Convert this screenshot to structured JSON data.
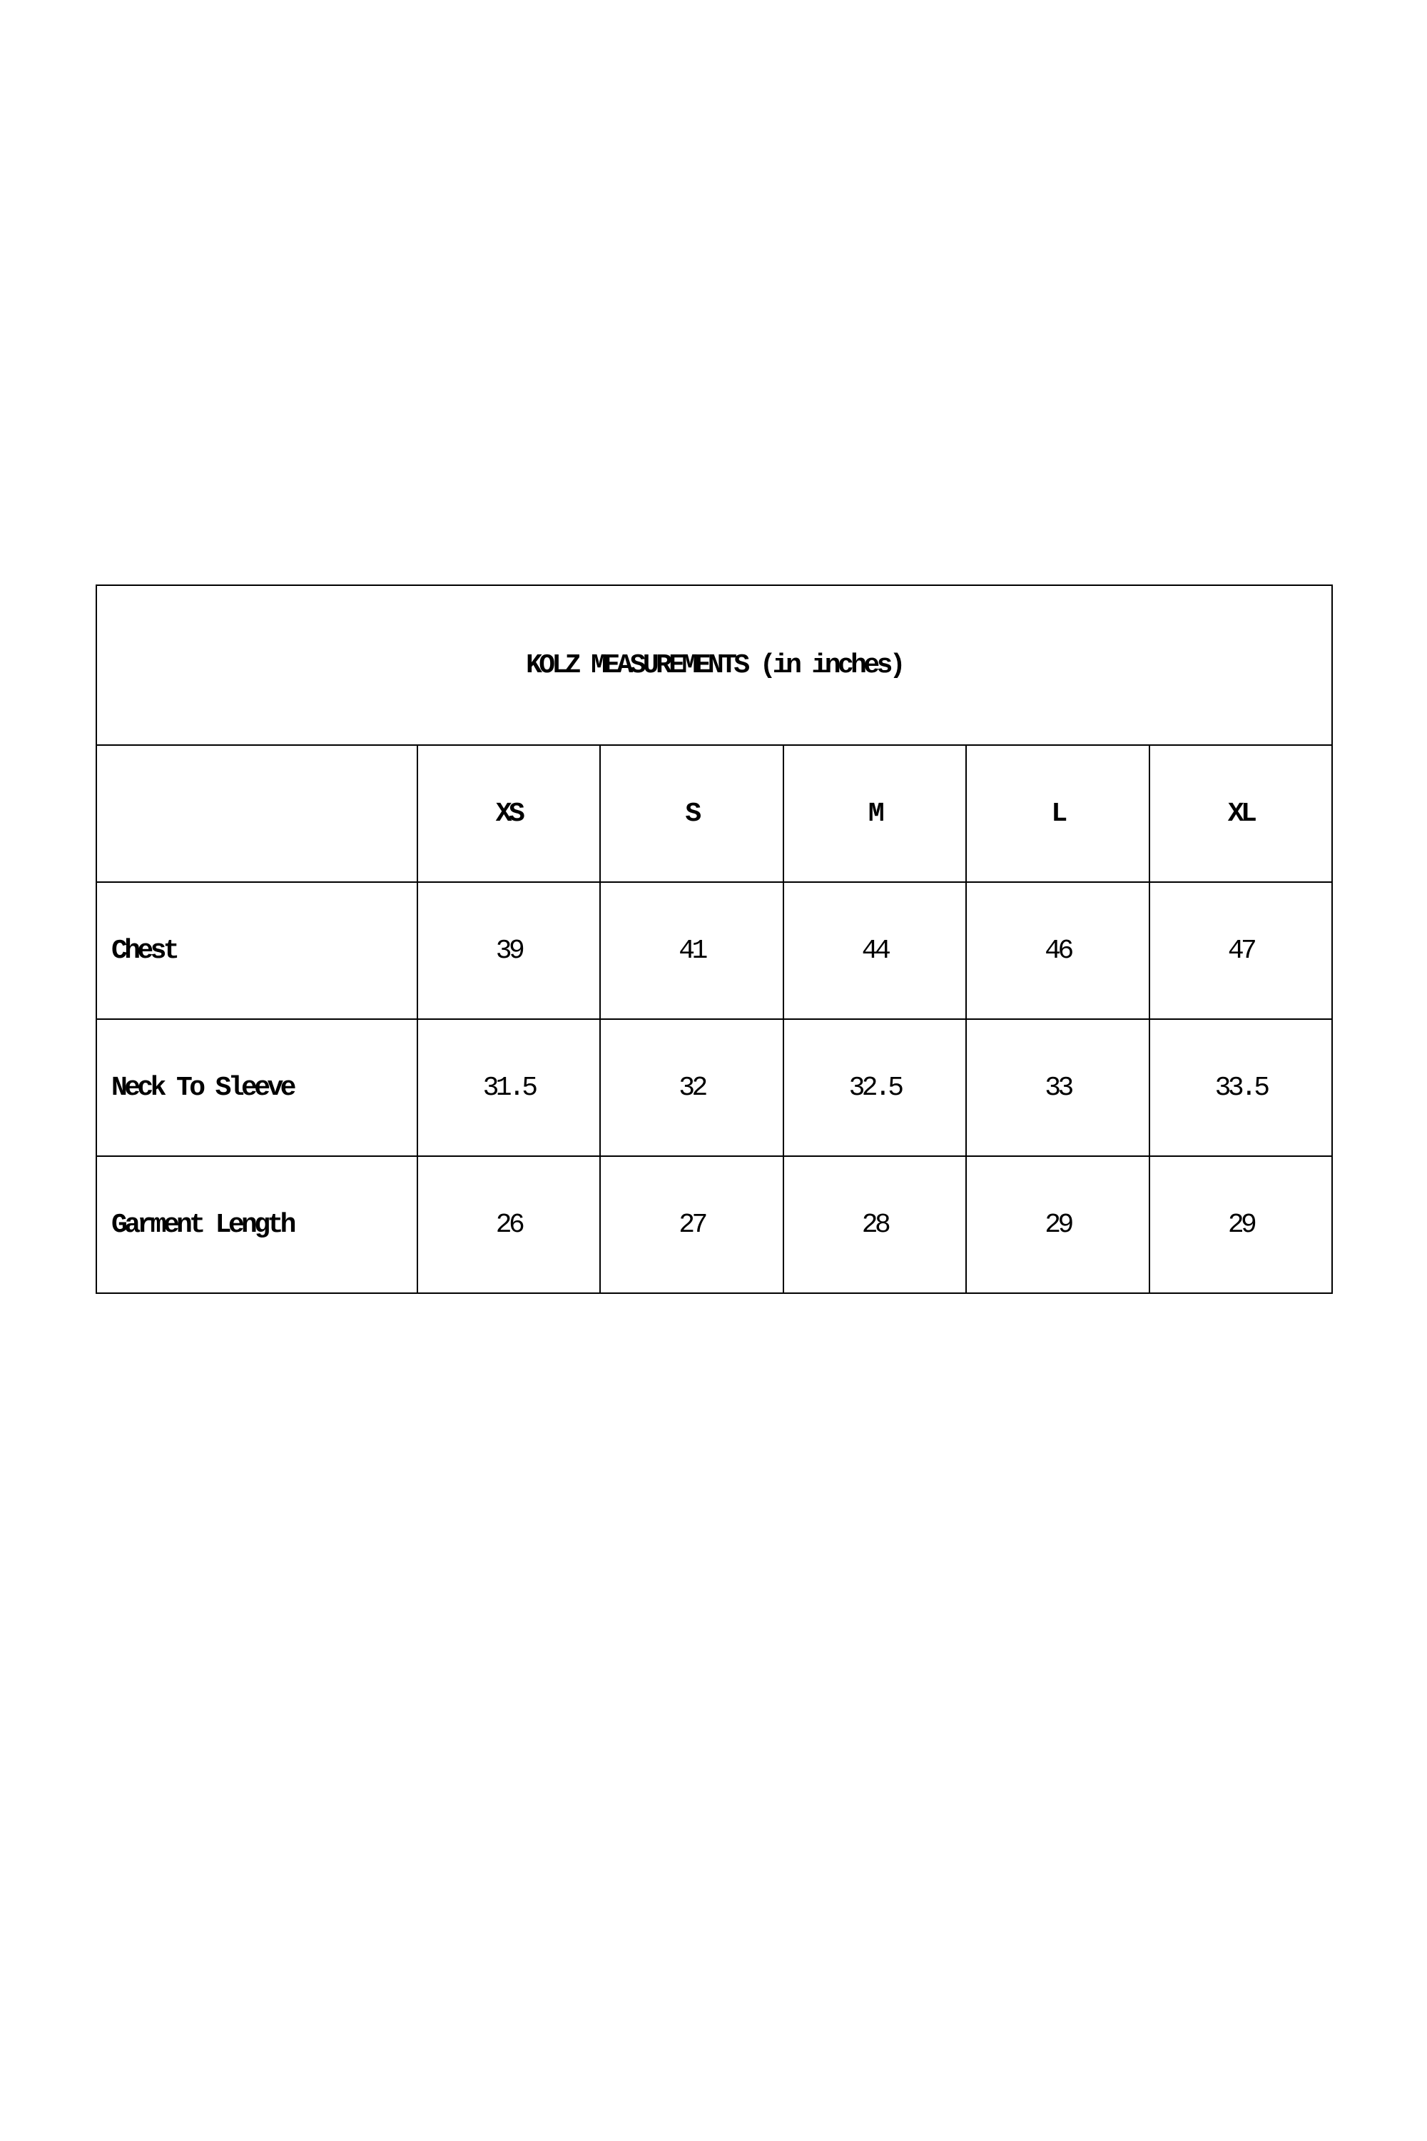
{
  "title": "KOLZ MEASUREMENTS (in inches)",
  "sizes": [
    "XS",
    "S",
    "M",
    "L",
    "XL"
  ],
  "rows": [
    {
      "label": "Chest",
      "values": [
        "39",
        "41",
        "44",
        "46",
        "47"
      ]
    },
    {
      "label": "Neck To Sleeve",
      "values": [
        "31.5",
        "32",
        "32.5",
        "33",
        "33.5"
      ]
    },
    {
      "label": "Garment Length",
      "values": [
        "26",
        "27",
        "28",
        "29",
        "29"
      ]
    }
  ]
}
